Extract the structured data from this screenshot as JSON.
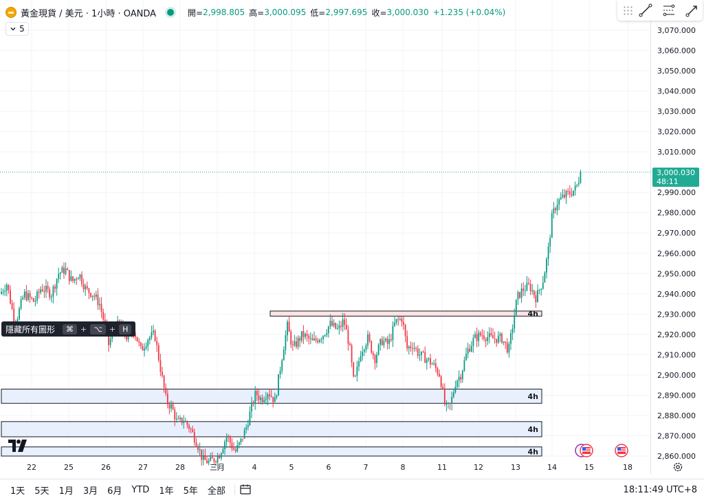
{
  "legend": {
    "symbol": "黃金現貨 / 美元 · 1小時 · OANDA",
    "open_label": "開=",
    "open": "2,998.805",
    "high_label": "高=",
    "high": "3,000.095",
    "low_label": "低=",
    "low": "2,997.695",
    "close_label": "收=",
    "close": "3,000.030",
    "change": "+1.235 (+0.04%)",
    "collapse_count": "5"
  },
  "colors": {
    "up": "#089981",
    "down": "#f23645",
    "zone_fill": "#e8f0fe",
    "zone_fill_red": "#fce4e4",
    "accent": "#22ab94"
  },
  "price_axis": {
    "labels": [
      "3,070.000",
      "3,060.000",
      "3,050.000",
      "3,040.000",
      "3,030.000",
      "3,020.000",
      "3,010.000",
      "2,990.000",
      "2,980.000",
      "2,970.000",
      "2,960.000",
      "2,950.000",
      "2,940.000",
      "2,930.000",
      "2,920.000",
      "2,910.000",
      "2,900.000",
      "2,890.000",
      "2,880.000",
      "2,870.000",
      "2,860.000"
    ],
    "last_price": "3,000.030",
    "countdown": "48:11"
  },
  "time_axis": {
    "labels": [
      "22",
      "25",
      "26",
      "27",
      "28",
      "三月",
      "4",
      "5",
      "6",
      "7",
      "8",
      "11",
      "12",
      "13",
      "14",
      "15",
      "18"
    ]
  },
  "zones": [
    {
      "label": "4h",
      "top": 2931.5,
      "bottom": 2929.0,
      "style": "red"
    },
    {
      "label": "4h",
      "top": 2893.0,
      "bottom": 2886.0,
      "style": "blue"
    },
    {
      "label": "4h",
      "top": 2877.0,
      "bottom": 2869.5,
      "style": "blue"
    },
    {
      "label": "4h",
      "top": 2864.5,
      "bottom": 2860.0,
      "style": "blue"
    }
  ],
  "tooltip": {
    "text": "隱藏所有圖形",
    "key1": "⌘",
    "key2": "⌥",
    "key3": "H",
    "plus": "+"
  },
  "toolbar": {
    "icons": [
      "drag-handle-icon",
      "trend-line-icon",
      "fib-retracement-icon",
      "arrow-line-icon"
    ]
  },
  "bottom": {
    "ranges": [
      "1天",
      "5天",
      "1月",
      "3月",
      "6月",
      "YTD",
      "1年",
      "5年",
      "全部"
    ],
    "clock": "18:11:49 UTC+8"
  },
  "chart_data": {
    "type": "candlestick",
    "title": "黃金現貨 / 美元 · 1小時 · OANDA",
    "ylim": [
      2858,
      3074
    ],
    "path_anchors": [
      [
        0,
        2940
      ],
      [
        10,
        2945
      ],
      [
        22,
        2925
      ],
      [
        35,
        2940
      ],
      [
        50,
        2936
      ],
      [
        60,
        2943
      ],
      [
        75,
        2940
      ],
      [
        85,
        2950
      ],
      [
        95,
        2952
      ],
      [
        105,
        2946
      ],
      [
        115,
        2950
      ],
      [
        125,
        2942
      ],
      [
        135,
        2940
      ],
      [
        145,
        2935
      ],
      [
        152,
        2925
      ],
      [
        158,
        2915
      ],
      [
        165,
        2922
      ],
      [
        175,
        2926
      ],
      [
        185,
        2918
      ],
      [
        195,
        2922
      ],
      [
        205,
        2912
      ],
      [
        215,
        2918
      ],
      [
        225,
        2920
      ],
      [
        235,
        2900
      ],
      [
        242,
        2887
      ],
      [
        250,
        2884
      ],
      [
        258,
        2876
      ],
      [
        266,
        2878
      ],
      [
        276,
        2874
      ],
      [
        286,
        2867
      ],
      [
        295,
        2858
      ],
      [
        305,
        2857
      ],
      [
        318,
        2860
      ],
      [
        330,
        2870
      ],
      [
        342,
        2862
      ],
      [
        350,
        2867
      ],
      [
        358,
        2874
      ],
      [
        365,
        2883
      ],
      [
        372,
        2891
      ],
      [
        380,
        2888
      ],
      [
        390,
        2892
      ],
      [
        400,
        2887
      ],
      [
        406,
        2900
      ],
      [
        412,
        2913
      ],
      [
        418,
        2924
      ],
      [
        426,
        2913
      ],
      [
        440,
        2920
      ],
      [
        455,
        2916
      ],
      [
        470,
        2920
      ],
      [
        480,
        2925
      ],
      [
        492,
        2922
      ],
      [
        500,
        2927
      ],
      [
        508,
        2915
      ],
      [
        515,
        2895
      ],
      [
        525,
        2912
      ],
      [
        535,
        2918
      ],
      [
        545,
        2908
      ],
      [
        555,
        2917
      ],
      [
        565,
        2915
      ],
      [
        575,
        2926
      ],
      [
        585,
        2928
      ],
      [
        592,
        2913
      ],
      [
        600,
        2915
      ],
      [
        610,
        2910
      ],
      [
        620,
        2908
      ],
      [
        630,
        2905
      ],
      [
        640,
        2900
      ],
      [
        648,
        2883
      ],
      [
        655,
        2885
      ],
      [
        663,
        2897
      ],
      [
        670,
        2900
      ],
      [
        680,
        2912
      ],
      [
        690,
        2918
      ],
      [
        700,
        2920
      ],
      [
        715,
        2918
      ],
      [
        730,
        2918
      ],
      [
        740,
        2912
      ],
      [
        746,
        2925
      ],
      [
        752,
        2938
      ],
      [
        760,
        2942
      ],
      [
        770,
        2944
      ],
      [
        780,
        2938
      ],
      [
        790,
        2947
      ],
      [
        797,
        2960
      ],
      [
        803,
        2978
      ],
      [
        810,
        2985
      ],
      [
        820,
        2988
      ],
      [
        830,
        2990
      ],
      [
        838,
        2992
      ],
      [
        845,
        3000
      ]
    ]
  }
}
